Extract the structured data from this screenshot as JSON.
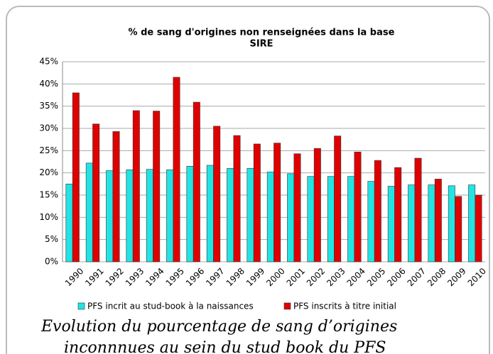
{
  "chart_data": {
    "type": "bar",
    "title": [
      "% de sang d'origines non renseignées dans la base",
      "SIRE"
    ],
    "categories": [
      "1990",
      "1991",
      "1992",
      "1993",
      "1994",
      "1995",
      "1996",
      "1997",
      "1998",
      "1999",
      "2000",
      "2001",
      "2002",
      "2003",
      "2004",
      "2005",
      "2006",
      "2007",
      "2008",
      "2009",
      "2010"
    ],
    "series": [
      {
        "name": "PFS incrit au stud-book à la naissances",
        "color": "#22e4e4",
        "values": [
          17.5,
          22.2,
          20.5,
          20.7,
          20.8,
          20.7,
          21.5,
          21.7,
          21.0,
          21.0,
          20.2,
          19.8,
          19.2,
          19.2,
          19.2,
          18.1,
          17.0,
          17.3,
          17.3,
          17.1,
          17.3
        ]
      },
      {
        "name": "PFS inscrits à titre initial",
        "color": "#e00000",
        "values": [
          38.0,
          31.0,
          29.3,
          34.0,
          33.9,
          41.5,
          35.9,
          30.5,
          28.4,
          26.5,
          26.7,
          24.3,
          25.5,
          28.3,
          24.7,
          22.8,
          21.2,
          23.3,
          18.6,
          14.7,
          15.0
        ]
      }
    ],
    "ylim": [
      0,
      45
    ],
    "yticks": [
      {
        "value": 0,
        "label": "0%"
      },
      {
        "value": 5,
        "label": "5%"
      },
      {
        "value": 10,
        "label": "10%"
      },
      {
        "value": 15,
        "label": "15%"
      },
      {
        "value": 20,
        "label": "20%"
      },
      {
        "value": 25,
        "label": "25%"
      },
      {
        "value": 30,
        "label": "30%"
      },
      {
        "value": 35,
        "label": "35%"
      },
      {
        "value": 40,
        "label": "40%"
      },
      {
        "value": 45,
        "label": "45%"
      }
    ],
    "grid": true,
    "legend": "bottom"
  },
  "caption": [
    "Evolution du pourcentage de sang d’origines",
    "inconnnues au sein du stud book du PFS"
  ]
}
